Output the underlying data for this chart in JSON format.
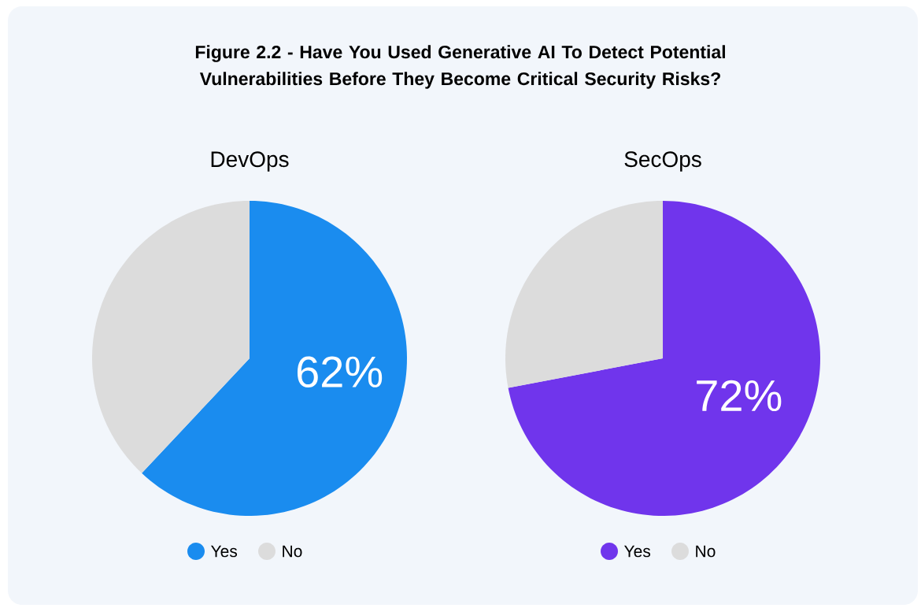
{
  "chart_data": [
    {
      "type": "other",
      "title": "Figure 2.2 - Have You Used Generative AI To Detect Potential Vulnerabilities Before They Become Critical Security Risks?"
    },
    {
      "type": "pie",
      "title": "DevOps",
      "categories": [
        "Yes",
        "No"
      ],
      "values": [
        62,
        38
      ],
      "colors": [
        "#1a8cef",
        "#dcdcdc"
      ],
      "value_labels": [
        "62%",
        null
      ],
      "legend": "bottom"
    },
    {
      "type": "pie",
      "title": "SecOps",
      "categories": [
        "Yes",
        "No"
      ],
      "values": [
        72,
        28
      ],
      "colors": [
        "#7035ec",
        "#dcdcdc"
      ],
      "value_labels": [
        "72%",
        null
      ],
      "legend": "bottom"
    }
  ]
}
